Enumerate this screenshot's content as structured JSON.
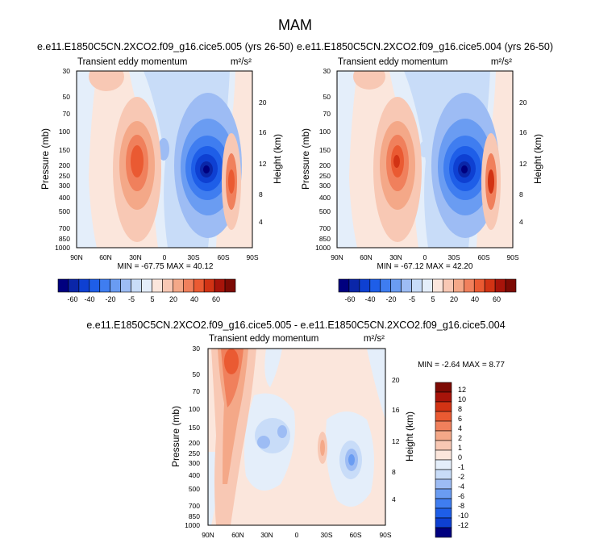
{
  "figure": {
    "title": "MAM"
  },
  "chart_data": [
    {
      "type": "heatmap",
      "name": "panel-1",
      "title": "e.e11.E1850C5CN.2XCO2.f09_g16.cice5.005 (yrs 26-50)",
      "left_label": "Transient eddy momentum",
      "right_label": "m²/s²",
      "xlabel": "",
      "ylabel": "Pressure (mb)",
      "ylabel_right": "Height (km)",
      "x_ticks": [
        "90N",
        "60N",
        "30N",
        "0",
        "30S",
        "60S",
        "90S"
      ],
      "y_ticks": [
        "30",
        "50",
        "70",
        "100",
        "150",
        "200",
        "250",
        "300",
        "400",
        "500",
        "700",
        "850",
        "1000"
      ],
      "y_ticks_right": [
        "20",
        "16",
        "12",
        "8",
        "4"
      ],
      "ylim": [
        1000,
        30
      ],
      "stats": "MIN = -67.75   MAX =  40.12",
      "colorbar": {
        "levels": [
          "-60",
          "-40",
          "-20",
          "-5",
          "5",
          "20",
          "40",
          "60"
        ],
        "colors": [
          "#00007f",
          "#0a26a8",
          "#0e40d2",
          "#1e5ee8",
          "#3f7df0",
          "#6a9cf2",
          "#9dbcf4",
          "#c8dcf8",
          "#e4eefa",
          "#fbe6dc",
          "#f8c8b4",
          "#f4a888",
          "#f0805c",
          "#ea5a32",
          "#d23314",
          "#a8140a",
          "#7d0a04"
        ]
      }
    },
    {
      "type": "heatmap",
      "name": "panel-2",
      "title": "e.e11.E1850C5CN.2XCO2.f09_g16.cice5.004 (yrs 26-50)",
      "left_label": "Transient eddy momentum",
      "right_label": "m²/s²",
      "xlabel": "",
      "ylabel": "Pressure (mb)",
      "ylabel_right": "Height (km)",
      "x_ticks": [
        "90N",
        "60N",
        "30N",
        "0",
        "30S",
        "60S",
        "90S"
      ],
      "y_ticks": [
        "30",
        "50",
        "70",
        "100",
        "150",
        "200",
        "250",
        "300",
        "400",
        "500",
        "700",
        "850",
        "1000"
      ],
      "y_ticks_right": [
        "20",
        "16",
        "12",
        "8",
        "4"
      ],
      "ylim": [
        1000,
        30
      ],
      "stats": "MIN = -67.12   MAX =  42.20",
      "colorbar": {
        "levels": [
          "-60",
          "-40",
          "-20",
          "-5",
          "5",
          "20",
          "40",
          "60"
        ],
        "colors": [
          "#00007f",
          "#0a26a8",
          "#0e40d2",
          "#1e5ee8",
          "#3f7df0",
          "#6a9cf2",
          "#9dbcf4",
          "#c8dcf8",
          "#e4eefa",
          "#fbe6dc",
          "#f8c8b4",
          "#f4a888",
          "#f0805c",
          "#ea5a32",
          "#d23314",
          "#a8140a",
          "#7d0a04"
        ]
      }
    },
    {
      "type": "heatmap",
      "name": "panel-diff",
      "title": "e.e11.E1850C5CN.2XCO2.f09_g16.cice5.005 - e.e11.E1850C5CN.2XCO2.f09_g16.cice5.004",
      "left_label": "Transient eddy momentum",
      "right_label": "m²/s²",
      "xlabel": "",
      "ylabel": "Pressure (mb)",
      "ylabel_right": "Height (km)",
      "x_ticks": [
        "90N",
        "60N",
        "30N",
        "0",
        "30S",
        "60S",
        "90S"
      ],
      "y_ticks": [
        "30",
        "50",
        "70",
        "100",
        "150",
        "200",
        "250",
        "300",
        "400",
        "500",
        "700",
        "850",
        "1000"
      ],
      "y_ticks_right": [
        "20",
        "16",
        "12",
        "8",
        "4"
      ],
      "ylim": [
        1000,
        30
      ],
      "stats": "MIN =  -2.64   MAX =   8.77",
      "colorbar": {
        "levels": [
          "12",
          "10",
          "8",
          "6",
          "4",
          "2",
          "1",
          "0",
          "-1",
          "-2",
          "-4",
          "-6",
          "-8",
          "-10",
          "-12"
        ],
        "colors": [
          "#7d0a04",
          "#a8140a",
          "#d23314",
          "#ea5a32",
          "#f0805c",
          "#f4a888",
          "#f8c8b4",
          "#fbe6dc",
          "#e4eefa",
          "#c8dcf8",
          "#9dbcf4",
          "#6a9cf2",
          "#3f7df0",
          "#1e5ee8",
          "#0e40d2",
          "#00007f"
        ]
      }
    }
  ]
}
